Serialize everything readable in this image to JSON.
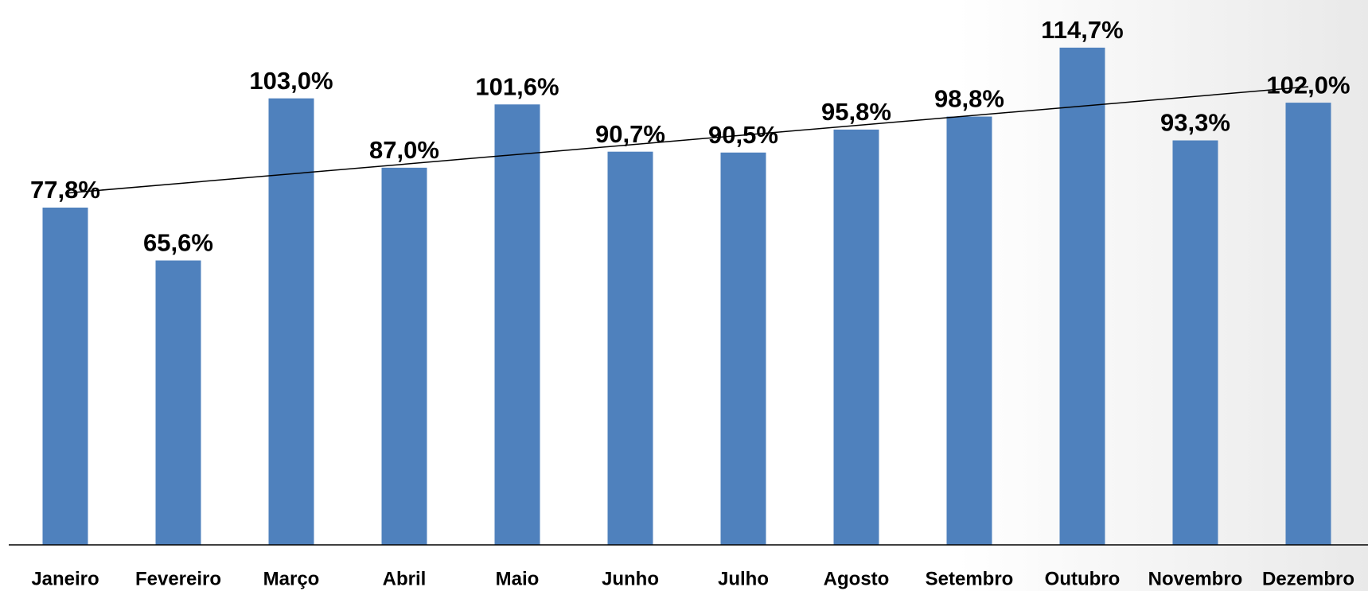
{
  "chart_data": {
    "type": "bar",
    "categories": [
      "Janeiro",
      "Fevereiro",
      "Março",
      "Abril",
      "Maio",
      "Junho",
      "Julho",
      "Agosto",
      "Setembro",
      "Outubro",
      "Novembro",
      "Dezembro"
    ],
    "values": [
      77.8,
      65.6,
      103.0,
      87.0,
      101.6,
      90.7,
      90.5,
      95.8,
      98.8,
      114.7,
      93.3,
      102.0
    ],
    "value_labels": [
      "77,8%",
      "65,6%",
      "103,0%",
      "87,0%",
      "101,6%",
      "90,7%",
      "90,5%",
      "95,8%",
      "98,8%",
      "114,7%",
      "93,3%",
      "102,0%"
    ],
    "color": "#4f81bd",
    "ylim": [
      0,
      120
    ],
    "trendline": true
  }
}
